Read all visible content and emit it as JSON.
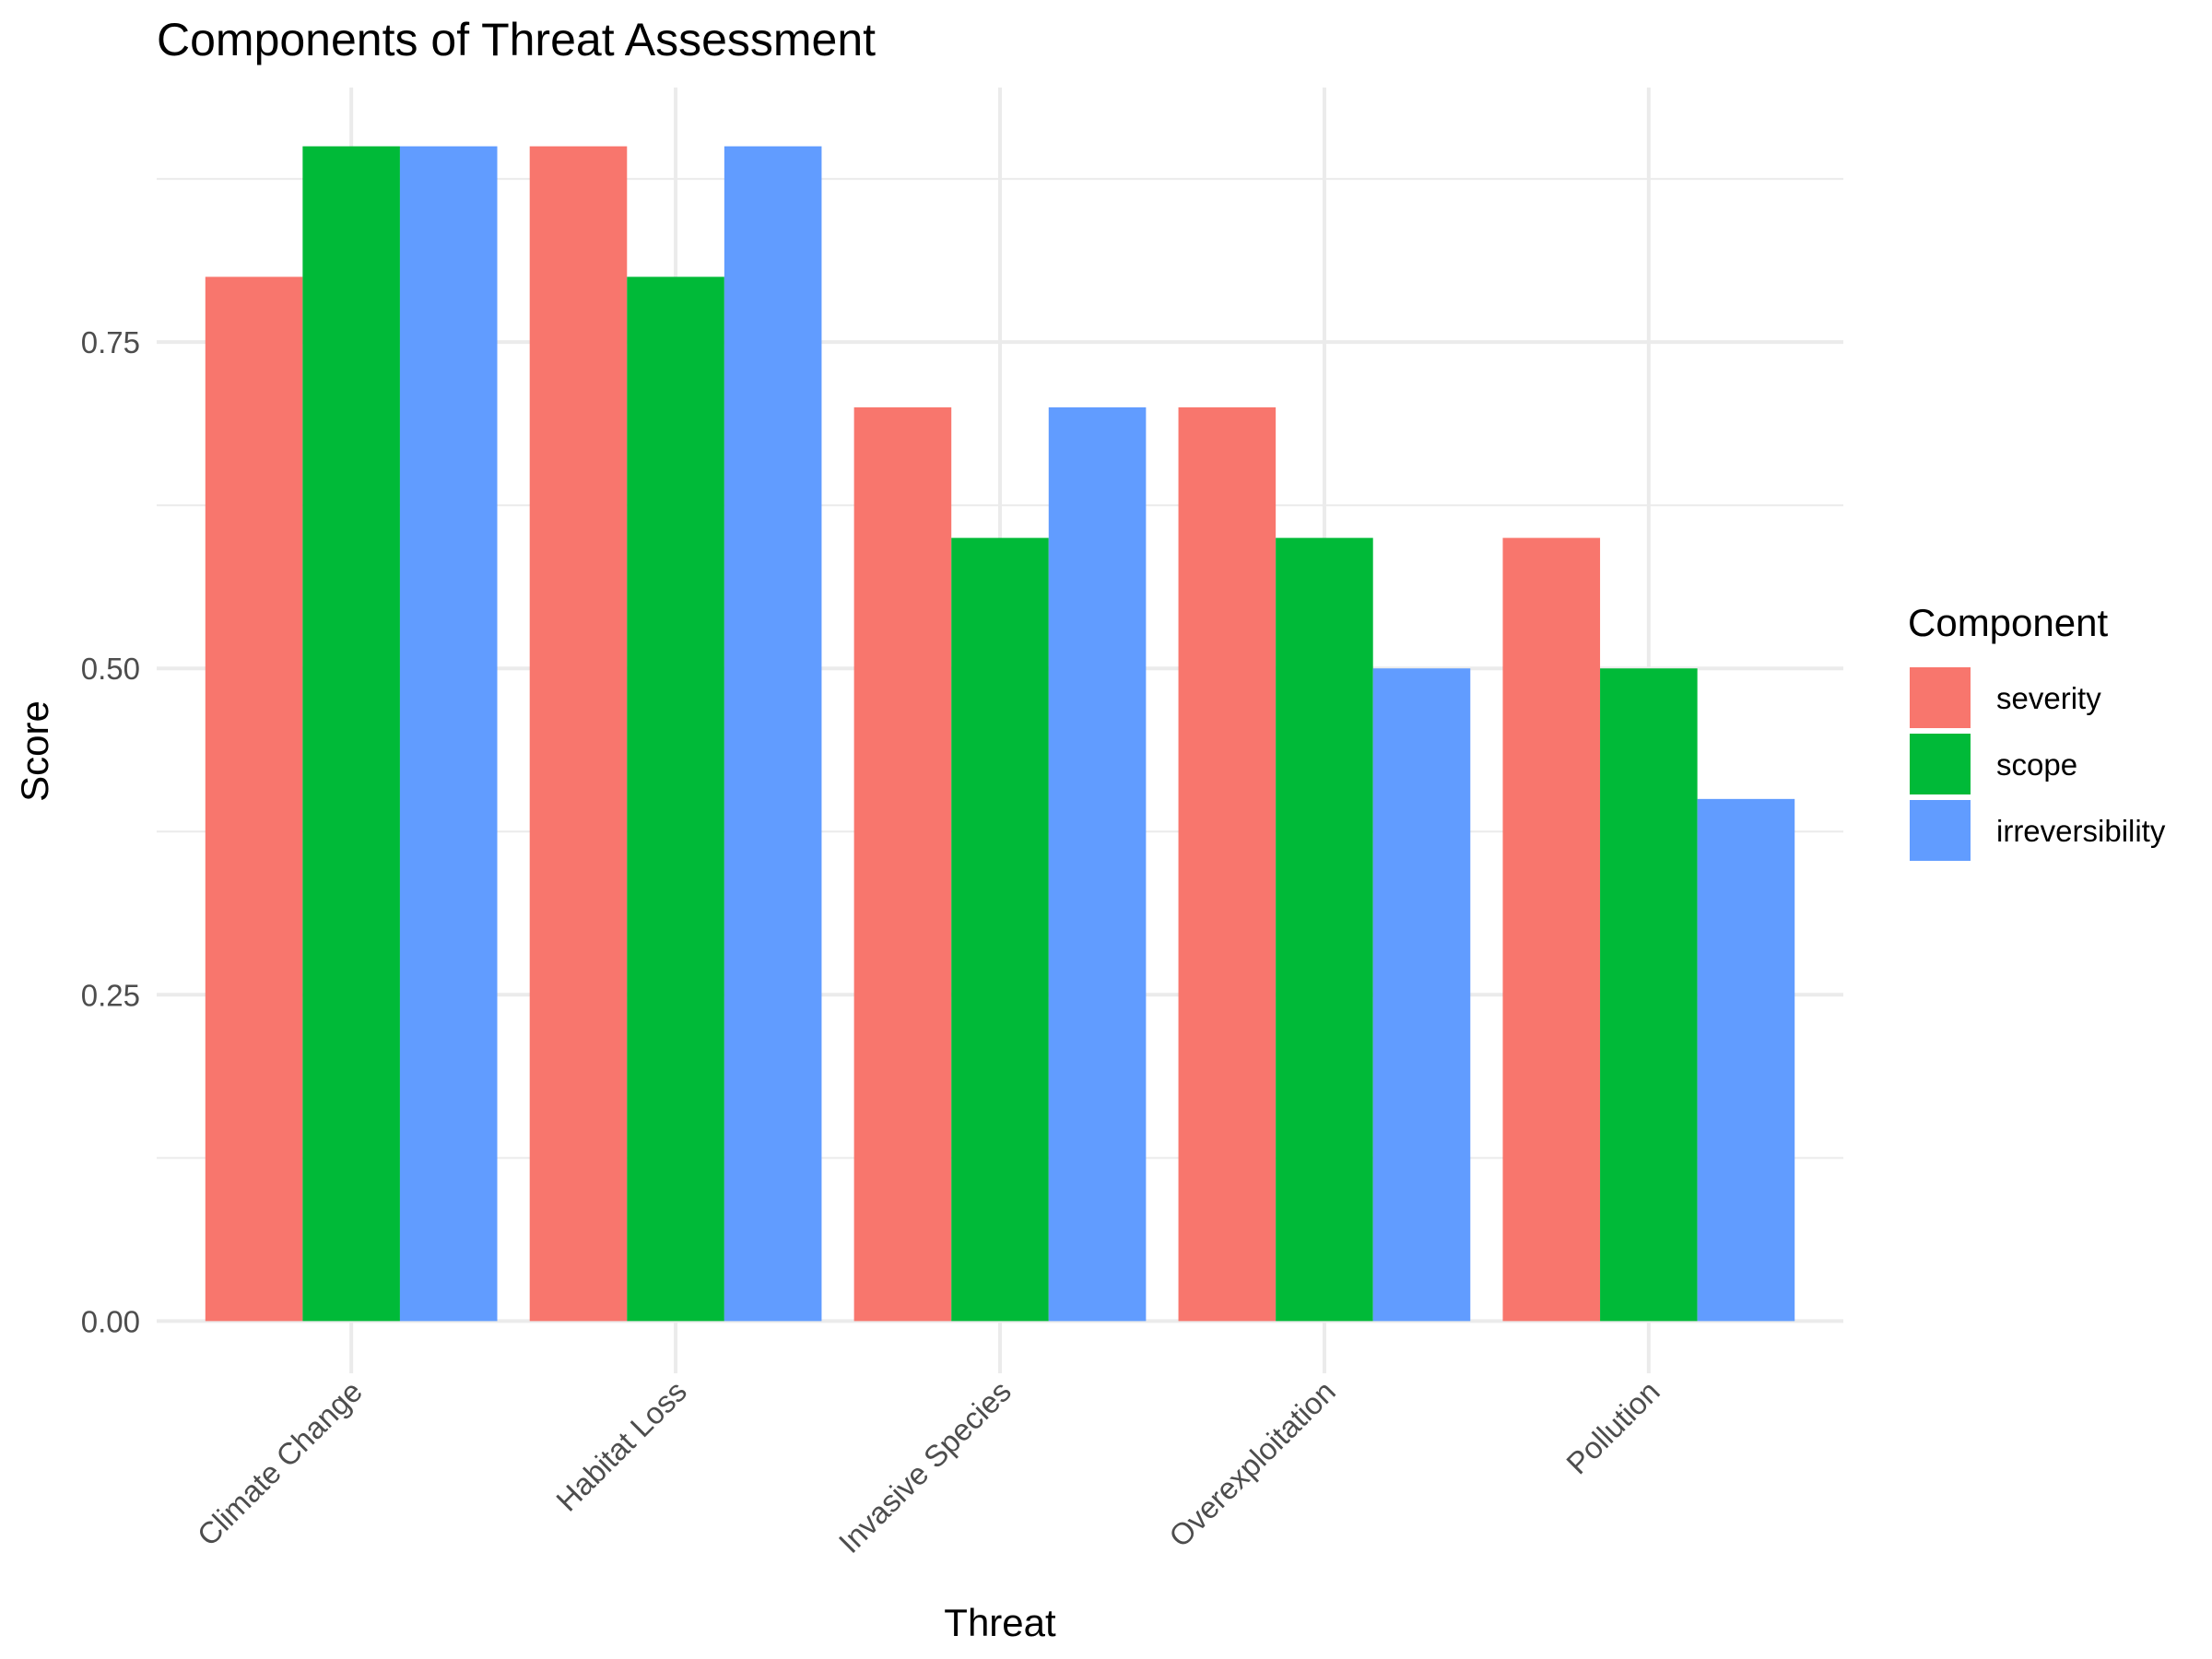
{
  "chart_data": {
    "type": "bar",
    "title": "Components of Threat Assessment",
    "xlabel": "Threat",
    "ylabel": "Score",
    "ylim": [
      -0.04,
      0.945
    ],
    "yticks": [
      0,
      0.25,
      0.5,
      0.75
    ],
    "ytick_labels": [
      "0.00",
      "0.25",
      "0.50",
      "0.75"
    ],
    "categories": [
      "Climate Change",
      "Habitat Loss",
      "Invasive Species",
      "Overexploitation",
      "Pollution"
    ],
    "legend_title": "Component",
    "legend_position": "right",
    "grid": true,
    "series": [
      {
        "name": "severity",
        "color": "#F8766D",
        "values": [
          0.8,
          0.9,
          0.7,
          0.7,
          0.6
        ]
      },
      {
        "name": "scope",
        "color": "#00BA38",
        "values": [
          0.9,
          0.8,
          0.6,
          0.6,
          0.5
        ]
      },
      {
        "name": "irreversibility",
        "color": "#619CFF",
        "values": [
          0.9,
          0.9,
          0.7,
          0.5,
          0.4
        ]
      }
    ]
  }
}
